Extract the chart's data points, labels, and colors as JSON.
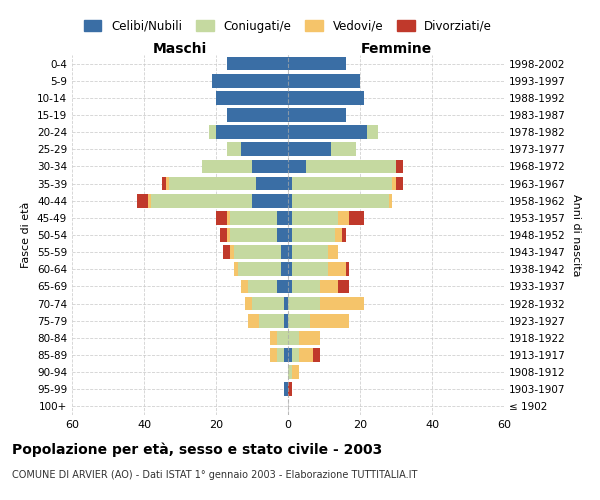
{
  "age_groups": [
    "100+",
    "95-99",
    "90-94",
    "85-89",
    "80-84",
    "75-79",
    "70-74",
    "65-69",
    "60-64",
    "55-59",
    "50-54",
    "45-49",
    "40-44",
    "35-39",
    "30-34",
    "25-29",
    "20-24",
    "15-19",
    "10-14",
    "5-9",
    "0-4"
  ],
  "birth_years": [
    "≤ 1902",
    "1903-1907",
    "1908-1912",
    "1913-1917",
    "1918-1922",
    "1923-1927",
    "1928-1932",
    "1933-1937",
    "1938-1942",
    "1943-1947",
    "1948-1952",
    "1953-1957",
    "1958-1962",
    "1963-1967",
    "1968-1972",
    "1973-1977",
    "1978-1982",
    "1983-1987",
    "1988-1992",
    "1993-1997",
    "1998-2002"
  ],
  "male": {
    "celibi": [
      0,
      1,
      0,
      1,
      0,
      1,
      1,
      3,
      2,
      2,
      3,
      3,
      10,
      9,
      10,
      13,
      20,
      17,
      20,
      21,
      17
    ],
    "coniugati": [
      0,
      0,
      0,
      2,
      3,
      7,
      9,
      8,
      12,
      13,
      13,
      13,
      28,
      24,
      14,
      4,
      2,
      0,
      0,
      0,
      0
    ],
    "vedovi": [
      0,
      0,
      0,
      2,
      2,
      3,
      2,
      2,
      1,
      1,
      1,
      1,
      1,
      1,
      0,
      0,
      0,
      0,
      0,
      0,
      0
    ],
    "divorziati": [
      0,
      0,
      0,
      0,
      0,
      0,
      0,
      0,
      0,
      2,
      2,
      3,
      3,
      1,
      0,
      0,
      0,
      0,
      0,
      0,
      0
    ]
  },
  "female": {
    "nubili": [
      0,
      0,
      0,
      1,
      0,
      0,
      0,
      1,
      1,
      1,
      1,
      1,
      1,
      1,
      5,
      12,
      22,
      16,
      21,
      20,
      16
    ],
    "coniugate": [
      0,
      0,
      1,
      2,
      3,
      6,
      9,
      8,
      10,
      10,
      12,
      13,
      27,
      28,
      25,
      7,
      3,
      0,
      0,
      0,
      0
    ],
    "vedove": [
      0,
      0,
      2,
      4,
      6,
      11,
      12,
      5,
      5,
      3,
      2,
      3,
      1,
      1,
      0,
      0,
      0,
      0,
      0,
      0,
      0
    ],
    "divorziate": [
      0,
      1,
      0,
      2,
      0,
      0,
      0,
      3,
      1,
      0,
      1,
      4,
      0,
      2,
      2,
      0,
      0,
      0,
      0,
      0,
      0
    ]
  },
  "colors": {
    "celibi_nubili": "#3a6ea5",
    "coniugati": "#c5d9a0",
    "vedovi": "#f5c46a",
    "divorziati": "#c0392b"
  },
  "xlim": 60,
  "title": "Popolazione per età, sesso e stato civile - 2003",
  "subtitle": "COMUNE DI ARVIER (AO) - Dati ISTAT 1° gennaio 2003 - Elaborazione TUTTITALIA.IT",
  "xlabel_left": "Maschi",
  "xlabel_right": "Femmine",
  "ylabel_left": "Fasce di età",
  "ylabel_right": "Anni di nascita",
  "legend_labels": [
    "Celibi/Nubili",
    "Coniugati/e",
    "Vedovi/e",
    "Divorziati/e"
  ],
  "background_color": "#ffffff",
  "grid_color": "#cccccc"
}
